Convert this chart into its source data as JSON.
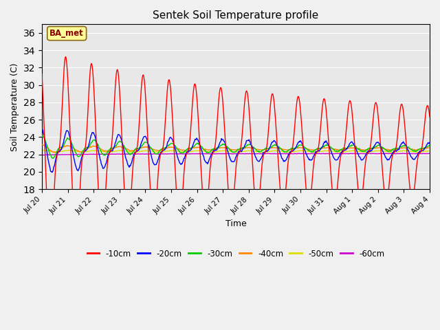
{
  "title": "Sentek Soil Temperature profile",
  "xlabel": "Time",
  "ylabel": "Soil Temperature (C)",
  "ylim": [
    18,
    37
  ],
  "yticks": [
    18,
    20,
    22,
    24,
    26,
    28,
    30,
    32,
    34,
    36
  ],
  "annotation": "BA_met",
  "background_color": "#f0f0f0",
  "plot_bg_color": "#e8e8e8",
  "legend_labels": [
    "-10cm",
    "-20cm",
    "-30cm",
    "-40cm",
    "-50cm",
    "-60cm"
  ],
  "legend_colors": [
    "#ff0000",
    "#0000ff",
    "#00cc00",
    "#ff8800",
    "#dddd00",
    "#cc00cc"
  ],
  "x_tick_labels": [
    "Jul 20",
    "Jul 21",
    "Jul 22",
    "Jul 23",
    "Jul 24",
    "Jul 25",
    "Jul 26",
    "Jul 27",
    "Jul 28",
    "Jul 29",
    "Jul 30",
    "Jul 31",
    "Aug 1",
    "Aug 2",
    "Aug 3",
    "Aug 4"
  ],
  "grid_color": "#ffffff",
  "figsize": [
    6.4,
    4.8
  ],
  "dpi": 100
}
